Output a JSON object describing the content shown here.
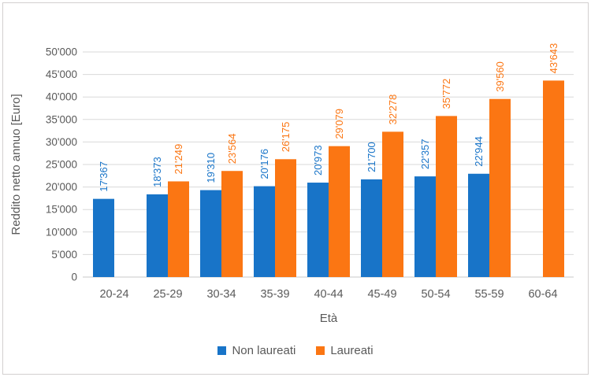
{
  "colors": {
    "series_blue": "#1874C8",
    "series_orange": "#FB7613",
    "gridline": "#D9D9D9",
    "axis_line": "#C9C9C9",
    "axis_text": "#595959"
  },
  "chart_data": {
    "type": "bar",
    "title": "",
    "xlabel": "Età",
    "ylabel": "Reddito netto annuo [Euro]",
    "categories": [
      "20-24",
      "25-29",
      "30-34",
      "35-39",
      "40-44",
      "45-49",
      "50-54",
      "55-59",
      "60-64"
    ],
    "series": [
      {
        "name": "Non laureati",
        "color": "#1874C8",
        "values": [
          17367,
          18373,
          19310,
          20176,
          20973,
          21700,
          22357,
          22944,
          null
        ],
        "labels": [
          "17'367",
          "18'373",
          "19'310",
          "20'176",
          "20'973",
          "21'700",
          "22'357",
          "22'944",
          null
        ]
      },
      {
        "name": "Laureati",
        "color": "#FB7613",
        "values": [
          null,
          21249,
          23564,
          26175,
          29079,
          32278,
          35772,
          39560,
          43643
        ],
        "labels": [
          null,
          "21'249",
          "23'564",
          "26'175",
          "29'079",
          "32'278",
          "35'772",
          "39'560",
          "43'643"
        ]
      }
    ],
    "y_axis": {
      "min": 0,
      "max": 50000,
      "tick_step": 5000,
      "tick_labels": [
        "0",
        "5'000",
        "10'000",
        "15'000",
        "20'000",
        "25'000",
        "30'000",
        "35'000",
        "40'000",
        "45'000",
        "50'000"
      ]
    },
    "grid": true,
    "legend_position": "bottom",
    "data_label_rotation": -90
  }
}
